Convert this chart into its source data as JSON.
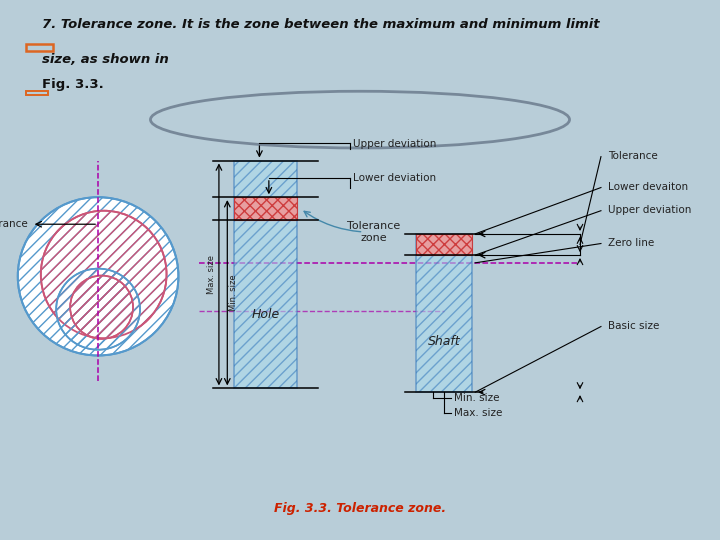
{
  "bg_outer": "#b8cdd8",
  "bg_header": "#ffffff",
  "bg_diagram": "#ffffff",
  "bg_footer": "#d0ddd0",
  "header_line1": "7. Tolerance zone. It is the zone between the maximum and minimum limit",
  "header_line2": "size, as shown in",
  "header_sub": "Fig. 3.3.",
  "footer_text": "Fig. 3.3. Tolerance zone.",
  "footer_text_color": "#cc2200",
  "diagram_border": "#aaaaaa",
  "hole_fill": "#aaddee",
  "shaft_fill": "#aaddee",
  "tol_fill": "#ee9999",
  "tol_hatch_color": "#cc3333",
  "zero_line_color": "#aa00aa",
  "label_color": "#222222",
  "ellipse_blue": "#5599cc",
  "ellipse_pink": "#cc5577",
  "bullet_color": "#dd6622",
  "circle_color": "#778899",
  "arrow_lw": 0.9,
  "label_fs": 7.5
}
